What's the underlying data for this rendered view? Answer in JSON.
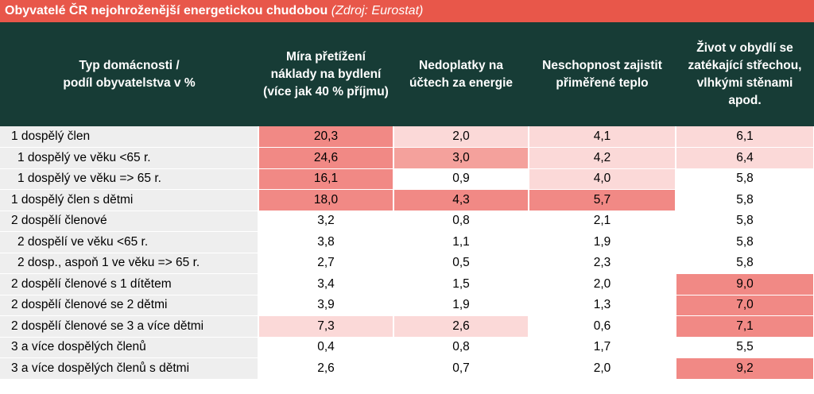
{
  "title": "Obyvatelé ČR nejohroženější energetickou chudobou",
  "source": "(Zdroj: Eurostat)",
  "colors": {
    "title_bg": "#e8574a",
    "header_bg": "#173c36",
    "category_bg": "#eeeeee",
    "level1": "#fbd9d8",
    "level2": "#f4a19c",
    "level3": "#f18985"
  },
  "chart_data": {
    "type": "table",
    "columns": [
      "Typ domácnosti /\npodíl obyvatelstva v %",
      "Míra přetížení náklady na bydlení (více jak 40 % příjmu)",
      "Nedoplatky na účtech za energie",
      "Neschopnost zajistit přiměřené teplo",
      "Život v obydlí se zatékající střechou, vlhkými stěnami apod."
    ],
    "rows": [
      {
        "label": "1 dospělý člen",
        "sub": false,
        "values": [
          "20,3",
          "2,0",
          "4,1",
          "6,1"
        ],
        "levels": [
          3,
          1,
          1,
          1
        ]
      },
      {
        "label": "1 dospělý ve věku <65 r.",
        "sub": true,
        "values": [
          "24,6",
          "3,0",
          "4,2",
          "6,4"
        ],
        "levels": [
          3,
          2,
          1,
          1
        ]
      },
      {
        "label": "1 dospělý ve věku => 65 r.",
        "sub": true,
        "values": [
          "16,1",
          "0,9",
          "4,0",
          "5,8"
        ],
        "levels": [
          3,
          0,
          1,
          0
        ]
      },
      {
        "label": "1 dospělý člen s dětmi",
        "sub": false,
        "values": [
          "18,0",
          "4,3",
          "5,7",
          "5,8"
        ],
        "levels": [
          3,
          3,
          3,
          0
        ]
      },
      {
        "label": "2 dospělí členové",
        "sub": false,
        "values": [
          "3,2",
          "0,8",
          "2,1",
          "5,8"
        ],
        "levels": [
          0,
          0,
          0,
          0
        ]
      },
      {
        "label": "2 dospělí ve věku <65 r.",
        "sub": true,
        "values": [
          "3,8",
          "1,1",
          "1,9",
          "5,8"
        ],
        "levels": [
          0,
          0,
          0,
          0
        ]
      },
      {
        "label": "2 dosp., aspoň 1 ve věku => 65 r.",
        "sub": true,
        "values": [
          "2,7",
          "0,5",
          "2,3",
          "5,8"
        ],
        "levels": [
          0,
          0,
          0,
          0
        ]
      },
      {
        "label": "2 dospělí členové s 1 dítětem",
        "sub": false,
        "values": [
          "3,4",
          "1,5",
          "2,0",
          "9,0"
        ],
        "levels": [
          0,
          0,
          0,
          3
        ]
      },
      {
        "label": "2 dospělí členové se 2 dětmi",
        "sub": false,
        "values": [
          "3,9",
          "1,9",
          "1,3",
          "7,0"
        ],
        "levels": [
          0,
          0,
          0,
          3
        ]
      },
      {
        "label": "2 dospělí členové se 3 a více dětmi",
        "sub": false,
        "values": [
          "7,3",
          "2,6",
          "0,6",
          "7,1"
        ],
        "levels": [
          1,
          1,
          0,
          3
        ]
      },
      {
        "label": "3 a více dospělých členů",
        "sub": false,
        "values": [
          "0,4",
          "0,8",
          "1,7",
          "5,5"
        ],
        "levels": [
          0,
          0,
          0,
          0
        ]
      },
      {
        "label": "3 a více dospělých členů s dětmi",
        "sub": false,
        "values": [
          "2,6",
          "0,7",
          "2,0",
          "9,2"
        ],
        "levels": [
          0,
          0,
          0,
          3
        ]
      }
    ]
  }
}
